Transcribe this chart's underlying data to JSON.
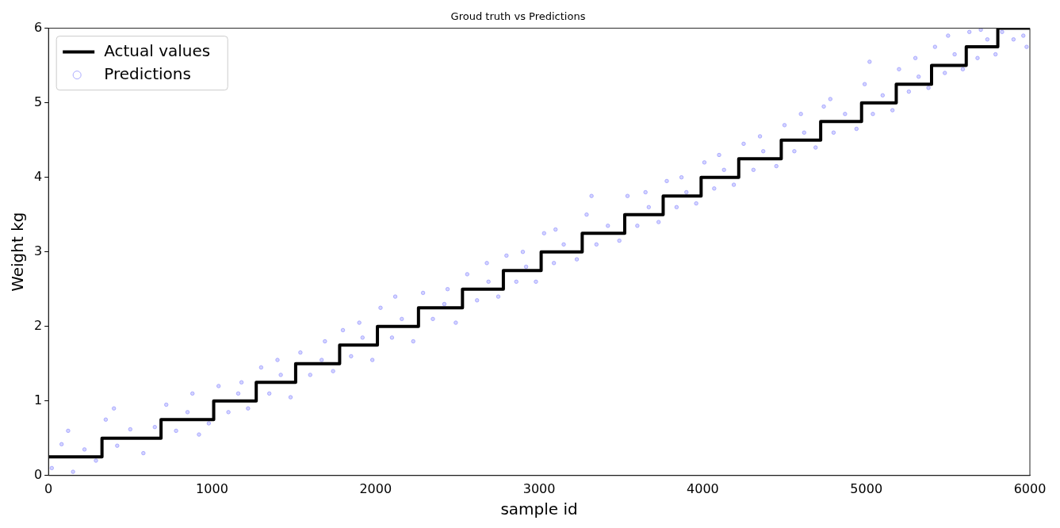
{
  "chart_data": {
    "type": "scatter",
    "title": "Groud truth vs Predictions",
    "xlabel": "sample id",
    "ylabel": "Weight kg",
    "xlim": [
      0,
      6000
    ],
    "xticks": [
      0,
      1000,
      2000,
      3000,
      4000,
      5000,
      6000
    ],
    "ylim": [
      0,
      6
    ],
    "yticks": [
      0,
      1,
      2,
      3,
      4,
      5,
      6
    ],
    "grid": false,
    "legend": "top left",
    "series": [
      {
        "name": "Actual values",
        "type": "step",
        "color": "#000000",
        "marker": "none",
        "line_style": "solid",
        "x": [
          0,
          327,
          688,
          1010,
          1270,
          1511,
          1780,
          2011,
          2262,
          2531,
          2781,
          3012,
          3263,
          3523,
          3758,
          3990,
          4220,
          4480,
          4721,
          4971,
          5183,
          5399,
          5611,
          5804,
          6000
        ],
        "values": [
          0.25,
          0.5,
          0.75,
          1.0,
          1.25,
          1.5,
          1.75,
          2.0,
          2.25,
          2.5,
          2.75,
          3.0,
          3.25,
          3.5,
          3.75,
          4.0,
          4.25,
          4.5,
          4.75,
          5.0,
          5.25,
          5.5,
          5.75,
          6.0,
          6.0
        ]
      },
      {
        "name": "Predictions",
        "type": "scatter",
        "color": "#aaaaff",
        "marker": "circle",
        "x": [
          20,
          80,
          150,
          220,
          290,
          120,
          350,
          420,
          500,
          580,
          650,
          400,
          720,
          780,
          850,
          920,
          980,
          880,
          1040,
          1100,
          1160,
          1220,
          1180,
          1300,
          1350,
          1420,
          1480,
          1400,
          1540,
          1600,
          1670,
          1740,
          1690,
          1800,
          1850,
          1920,
          1980,
          1900,
          2030,
          2100,
          2160,
          2230,
          2120,
          2290,
          2350,
          2420,
          2490,
          2440,
          2560,
          2620,
          2690,
          2750,
          2680,
          2800,
          2860,
          2920,
          2980,
          2900,
          3030,
          3090,
          3150,
          3230,
          3100,
          3290,
          3350,
          3420,
          3490,
          3320,
          3540,
          3600,
          3670,
          3730,
          3650,
          3780,
          3840,
          3900,
          3960,
          3870,
          4010,
          4070,
          4130,
          4190,
          4100,
          4250,
          4310,
          4370,
          4450,
          4350,
          4500,
          4560,
          4620,
          4690,
          4600,
          4740,
          4800,
          4870,
          4940,
          4780,
          4990,
          5040,
          5100,
          5160,
          5020,
          5200,
          5260,
          5320,
          5380,
          5300,
          5420,
          5480,
          5540,
          5590,
          5500,
          5630,
          5680,
          5740,
          5790,
          5700,
          5830,
          5900,
          5960,
          5980
        ],
        "values": [
          0.1,
          0.42,
          0.05,
          0.35,
          0.2,
          0.6,
          0.75,
          0.4,
          0.62,
          0.3,
          0.65,
          0.9,
          0.95,
          0.6,
          0.85,
          0.55,
          0.7,
          1.1,
          1.2,
          0.85,
          1.1,
          0.9,
          1.25,
          1.45,
          1.1,
          1.35,
          1.05,
          1.55,
          1.65,
          1.35,
          1.55,
          1.4,
          1.8,
          1.95,
          1.6,
          1.85,
          1.55,
          2.05,
          2.25,
          1.85,
          2.1,
          1.8,
          2.4,
          2.45,
          2.1,
          2.3,
          2.05,
          2.5,
          2.7,
          2.35,
          2.6,
          2.4,
          2.85,
          2.95,
          2.6,
          2.8,
          2.6,
          3.0,
          3.25,
          2.85,
          3.1,
          2.9,
          3.3,
          3.5,
          3.1,
          3.35,
          3.15,
          3.75,
          3.75,
          3.35,
          3.6,
          3.4,
          3.8,
          3.95,
          3.6,
          3.8,
          3.65,
          4.0,
          4.2,
          3.85,
          4.1,
          3.9,
          4.3,
          4.45,
          4.1,
          4.35,
          4.15,
          4.55,
          4.7,
          4.35,
          4.6,
          4.4,
          4.85,
          4.95,
          4.6,
          4.85,
          4.65,
          5.05,
          5.25,
          4.85,
          5.1,
          4.9,
          5.55,
          5.45,
          5.15,
          5.35,
          5.2,
          5.6,
          5.75,
          5.4,
          5.65,
          5.45,
          5.9,
          5.95,
          5.6,
          5.85,
          5.65,
          5.98,
          5.95,
          5.85,
          5.9,
          5.75
        ]
      }
    ]
  }
}
